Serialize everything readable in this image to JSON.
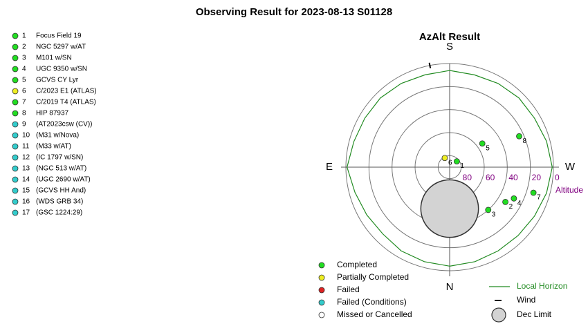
{
  "chart_data": {
    "type": "polar",
    "title": "Observing Result for 2023-08-13 S01128",
    "subtitle": "AzAlt Result",
    "radial_label": "Altitude",
    "rlim": [
      90,
      0
    ],
    "rticks": [
      80,
      60,
      40,
      20,
      0
    ],
    "directions": [
      {
        "label": "S",
        "az": 180
      },
      {
        "label": "E",
        "az": 90
      },
      {
        "label": "W",
        "az": 270
      },
      {
        "label": "N",
        "az": 0
      }
    ],
    "statuses": [
      {
        "name": "Completed",
        "color": "#22dd22"
      },
      {
        "name": "Partially Completed",
        "color": "#eeee22"
      },
      {
        "name": "Failed",
        "color": "#dd2222"
      },
      {
        "name": "Failed (Conditions)",
        "color": "#33cccc"
      },
      {
        "name": "Missed or Cancelled",
        "color": "#ffffff"
      }
    ],
    "targets": [
      {
        "id": 1,
        "name": "Focus Field 19",
        "status": "Completed",
        "az": 231,
        "alt": 82
      },
      {
        "id": 2,
        "name": "NGC 5297 w/AT",
        "status": "Completed",
        "az": 302,
        "alt": 33
      },
      {
        "id": 3,
        "name": "M101 w/SN",
        "status": "Completed",
        "az": 318,
        "alt": 40
      },
      {
        "id": 4,
        "name": "UGC 9350 w/SN",
        "status": "Completed",
        "az": 296,
        "alt": 28
      },
      {
        "id": 5,
        "name": "GCVS CY Lyr",
        "status": "Completed",
        "az": 234,
        "alt": 55
      },
      {
        "id": 6,
        "name": "C/2023 E1 (ATLAS)",
        "status": "Partially Completed",
        "az": 152,
        "alt": 81
      },
      {
        "id": 7,
        "name": "C/2019 T4 (ATLAS)",
        "status": "Completed",
        "az": 287,
        "alt": 14
      },
      {
        "id": 8,
        "name": "HIP 87937",
        "status": "Completed",
        "az": 246,
        "alt": 24
      },
      {
        "id": 9,
        "name": "(AT2023csw (CV))",
        "status": "Failed (Conditions)"
      },
      {
        "id": 10,
        "name": "(M31 w/Nova)",
        "status": "Failed (Conditions)"
      },
      {
        "id": 11,
        "name": "(M33 w/AT)",
        "status": "Failed (Conditions)"
      },
      {
        "id": 12,
        "name": "(IC 1797 w/SN)",
        "status": "Failed (Conditions)"
      },
      {
        "id": 13,
        "name": "(NGC 513 w/AT)",
        "status": "Failed (Conditions)"
      },
      {
        "id": 14,
        "name": "(UGC 2690 w/AT)",
        "status": "Failed (Conditions)"
      },
      {
        "id": 15,
        "name": "(GCVS HH And)",
        "status": "Failed (Conditions)"
      },
      {
        "id": 16,
        "name": "(WDS GRB 34)",
        "status": "Failed (Conditions)"
      },
      {
        "id": 17,
        "name": "(GSC 1224:29)",
        "status": "Failed (Conditions)"
      }
    ],
    "horizon": {
      "name": "Local Horizon",
      "color": "#228b22",
      "az": [
        0,
        15,
        30,
        45,
        60,
        75,
        90,
        105,
        120,
        135,
        150,
        165,
        180,
        195,
        210,
        225,
        240,
        255,
        270,
        285,
        300,
        315,
        330,
        345
      ],
      "alt": [
        4,
        5,
        6,
        8,
        7,
        5,
        1,
        4,
        5,
        5,
        6,
        7,
        6,
        7,
        6,
        5,
        5,
        3,
        1,
        3,
        5,
        6,
        6,
        5
      ]
    },
    "wind": {
      "name": "Wind",
      "az": 169
    },
    "dec_limit": {
      "name": "Dec Limit",
      "az": 0,
      "alt": 54,
      "radius": 25
    }
  }
}
